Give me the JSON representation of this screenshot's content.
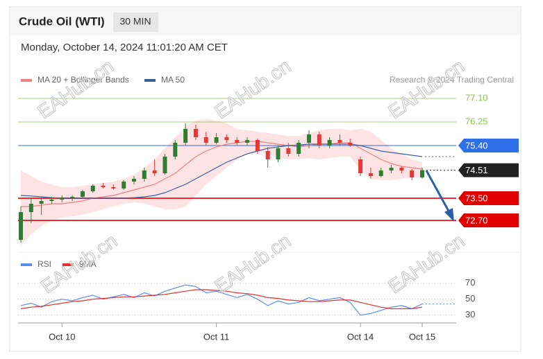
{
  "header": {
    "title": "Crude Oil (WTI)",
    "timeframe": "30 MIN",
    "datetime": "Monday, October 14, 2024 11:01:20 AM CET"
  },
  "watermark": "EAHub.cn",
  "chart_data": [
    {
      "type": "candlestick",
      "credit": "Research © 2024 Trading Central",
      "up_color": "#2e7d32",
      "down_color": "#e53935",
      "open": [
        72.0,
        73.0,
        73.3,
        73.4,
        73.45,
        73.5,
        73.55,
        73.75,
        73.95,
        73.9,
        73.85,
        74.1,
        74.2,
        74.5,
        74.4,
        75.0,
        75.5,
        76.0,
        75.7,
        75.5,
        75.7,
        75.6,
        75.5,
        75.6,
        75.2,
        74.9,
        75.3,
        75.1,
        75.5,
        75.8,
        75.4,
        75.6,
        75.5,
        74.9,
        74.4,
        74.3,
        74.5,
        74.6,
        74.5,
        74.25
      ],
      "high": [
        73.2,
        73.5,
        73.5,
        73.55,
        73.6,
        73.6,
        73.8,
        74.0,
        74.05,
        74.0,
        74.15,
        74.3,
        74.6,
        74.9,
        75.1,
        75.6,
        76.2,
        76.15,
        75.9,
        75.85,
        75.8,
        75.7,
        75.7,
        75.65,
        75.35,
        75.4,
        75.5,
        75.6,
        75.95,
        75.9,
        75.7,
        75.8,
        75.65,
        75.0,
        74.6,
        74.6,
        74.7,
        74.65,
        74.55,
        74.6
      ],
      "low": [
        71.9,
        72.6,
        72.9,
        73.3,
        73.35,
        73.4,
        73.5,
        73.7,
        73.85,
        73.8,
        73.8,
        74.0,
        74.1,
        74.3,
        74.35,
        74.9,
        75.4,
        75.6,
        75.4,
        75.45,
        75.5,
        75.4,
        75.4,
        75.1,
        74.6,
        74.8,
        75.0,
        75.0,
        75.3,
        75.3,
        75.3,
        75.4,
        75.35,
        74.3,
        74.2,
        74.25,
        74.4,
        74.4,
        74.15,
        74.2
      ],
      "close": [
        73.0,
        73.3,
        73.4,
        73.45,
        73.5,
        73.55,
        73.75,
        73.95,
        73.9,
        73.85,
        74.1,
        74.2,
        74.5,
        74.4,
        75.0,
        75.5,
        76.0,
        75.7,
        75.5,
        75.7,
        75.6,
        75.5,
        75.6,
        75.2,
        74.9,
        75.3,
        75.1,
        75.5,
        75.8,
        75.4,
        75.6,
        75.5,
        75.4,
        74.4,
        74.3,
        74.5,
        74.6,
        74.5,
        74.25,
        74.51
      ],
      "series": [
        {
          "name": "MA 20 + Bollinger Bands",
          "color": "#f08080",
          "band_color": "#fde3e3",
          "values": [
            73.2,
            73.2,
            73.25,
            73.3,
            73.3,
            73.35,
            73.4,
            73.5,
            73.55,
            73.6,
            73.7,
            73.8,
            73.9,
            74.0,
            74.2,
            74.4,
            74.7,
            75.0,
            75.2,
            75.35,
            75.45,
            75.5,
            75.55,
            75.55,
            75.5,
            75.45,
            75.4,
            75.35,
            75.4,
            75.45,
            75.45,
            75.5,
            75.5,
            75.3,
            75.1,
            74.9,
            74.75,
            74.65,
            74.6,
            74.55
          ],
          "upper": [
            74.5,
            74.3,
            74.1,
            74.0,
            73.9,
            73.9,
            73.95,
            74.0,
            74.05,
            74.1,
            74.2,
            74.35,
            74.6,
            74.9,
            75.3,
            75.7,
            76.1,
            76.3,
            76.35,
            76.3,
            76.2,
            76.0,
            75.95,
            75.9,
            75.85,
            75.8,
            75.75,
            75.75,
            75.85,
            75.95,
            76.0,
            76.0,
            75.95,
            76.0,
            75.9,
            75.6,
            75.3,
            75.1,
            74.9,
            74.8
          ],
          "lower": [
            71.8,
            72.2,
            72.5,
            72.7,
            72.8,
            72.85,
            72.9,
            73.0,
            73.1,
            73.2,
            73.3,
            73.35,
            73.3,
            73.2,
            73.1,
            73.1,
            73.2,
            73.6,
            74.0,
            74.3,
            74.6,
            74.9,
            75.1,
            75.15,
            75.1,
            74.95,
            74.9,
            74.9,
            74.95,
            74.9,
            74.95,
            75.0,
            75.0,
            74.5,
            74.2,
            74.15,
            74.15,
            74.2,
            74.25,
            74.25
          ]
        },
        {
          "name": "MA 50",
          "color": "#3a5f9f",
          "values": [
            73.6,
            73.58,
            73.55,
            73.52,
            73.5,
            73.5,
            73.5,
            73.5,
            73.5,
            73.5,
            73.5,
            73.52,
            73.55,
            73.6,
            73.7,
            73.85,
            74.0,
            74.2,
            74.4,
            74.6,
            74.8,
            74.95,
            75.1,
            75.2,
            75.3,
            75.35,
            75.4,
            75.42,
            75.45,
            75.45,
            75.45,
            75.45,
            75.45,
            75.4,
            75.3,
            75.2,
            75.15,
            75.1,
            75.05,
            75.0
          ]
        }
      ],
      "levels": [
        {
          "value": 77.1,
          "label": "77.10",
          "color": "#8bc34a",
          "boxed": false,
          "line": "solid"
        },
        {
          "value": 76.25,
          "color": "#8bc34a",
          "boxed": false,
          "line": "solid"
        },
        {
          "value": 75.4,
          "label": "75.40",
          "color": "#2f6fe8",
          "boxed": true,
          "line": "solid"
        },
        {
          "value": 74.51,
          "color": "#222222",
          "boxed": true,
          "line": "dotted"
        },
        {
          "value": 73.5,
          "label": "73.50",
          "color": "#e00000",
          "boxed": true,
          "line": "solid"
        },
        {
          "value": 72.7,
          "label": "72.70",
          "color": "#e00000",
          "boxed": true,
          "line": "solid"
        }
      ],
      "ylim": [
        71.6,
        77.4
      ]
    },
    {
      "type": "line",
      "categories": [
        null,
        null,
        null,
        null,
        "Oct 10",
        null,
        null,
        null,
        null,
        null,
        null,
        null,
        null,
        null,
        null,
        null,
        null,
        null,
        null,
        "Oct 11",
        null,
        null,
        null,
        null,
        null,
        null,
        null,
        null,
        null,
        null,
        null,
        null,
        null,
        "Oct 14",
        null,
        null,
        null,
        null,
        null,
        "Oct 15"
      ],
      "series": [
        {
          "name": "RSI",
          "color": "#5b8def",
          "values": [
            42,
            45,
            40,
            47,
            50,
            48,
            52,
            55,
            50,
            53,
            56,
            52,
            58,
            54,
            60,
            64,
            68,
            66,
            58,
            60,
            56,
            52,
            56,
            50,
            42,
            48,
            44,
            46,
            52,
            48,
            50,
            52,
            46,
            30,
            32,
            36,
            40,
            42,
            38,
            44
          ]
        },
        {
          "name": "9MA",
          "color": "#e03030",
          "values": [
            38,
            40,
            41,
            43,
            45,
            47,
            48,
            50,
            51,
            52,
            53,
            53,
            54,
            55,
            56,
            58,
            60,
            62,
            62,
            61,
            60,
            58,
            57,
            55,
            52,
            51,
            49,
            48,
            47,
            47,
            48,
            49,
            49,
            46,
            43,
            40,
            38,
            38,
            38,
            40
          ]
        }
      ],
      "ylim": [
        21,
        82
      ],
      "yticks": [
        30,
        50,
        70
      ]
    }
  ]
}
